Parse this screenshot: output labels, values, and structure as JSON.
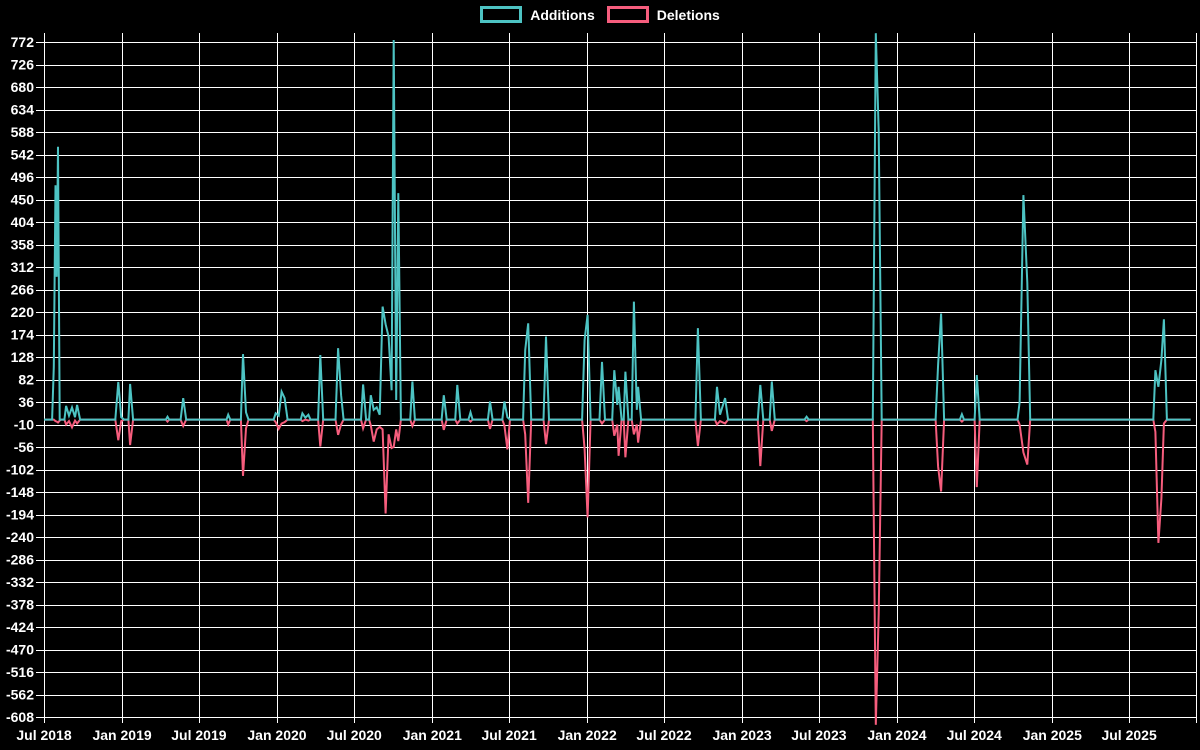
{
  "chart_data": {
    "type": "line",
    "title": "",
    "xlabel": "",
    "ylabel": "",
    "grid": true,
    "legend_position": "top",
    "background_color": "#000000",
    "grid_color": "#ffffff",
    "text_color": "#ffffff",
    "ylim": [
      -624,
      790
    ],
    "x_range": [
      "2018-07-01",
      "2025-12-08"
    ],
    "y_ticks": [
      772,
      726,
      680,
      634,
      588,
      542,
      496,
      450,
      404,
      358,
      312,
      266,
      220,
      174,
      128,
      82,
      36,
      -10,
      -56,
      -102,
      -148,
      -194,
      -240,
      -286,
      -332,
      -378,
      -424,
      -470,
      -516,
      -562,
      -608
    ],
    "x_ticks": [
      {
        "label": "Jul 2018",
        "date": "2018-07-01"
      },
      {
        "label": "Jan 2019",
        "date": "2019-01-01"
      },
      {
        "label": "Jul 2019",
        "date": "2019-07-01"
      },
      {
        "label": "Jan 2020",
        "date": "2020-01-01"
      },
      {
        "label": "Jul 2020",
        "date": "2020-07-01"
      },
      {
        "label": "Jan 2021",
        "date": "2021-01-01"
      },
      {
        "label": "Jul 2021",
        "date": "2021-07-01"
      },
      {
        "label": "Jan 2022",
        "date": "2022-01-01"
      },
      {
        "label": "Jul 2022",
        "date": "2022-07-01"
      },
      {
        "label": "Jan 2023",
        "date": "2023-01-01"
      },
      {
        "label": "Jul 2023",
        "date": "2023-07-01"
      },
      {
        "label": "Jan 2024",
        "date": "2024-01-01"
      },
      {
        "label": "Jul 2024",
        "date": "2024-07-01"
      },
      {
        "label": "Jan 2025",
        "date": "2025-01-01"
      },
      {
        "label": "Jul 2025",
        "date": "2025-07-01"
      }
    ],
    "series": [
      {
        "name": "Additions",
        "color": "#4DC3C3",
        "value_index": 1
      },
      {
        "name": "Deletions",
        "color": "#F65D7D",
        "value_index": 2
      }
    ],
    "points": [
      [
        "2018-07-01",
        0,
        0
      ],
      [
        "2018-07-20",
        0,
        0
      ],
      [
        "2018-07-24",
        108,
        0
      ],
      [
        "2018-07-28",
        479,
        -3
      ],
      [
        "2018-07-31",
        292,
        -4
      ],
      [
        "2018-08-03",
        558,
        -6
      ],
      [
        "2018-08-07",
        0,
        -2
      ],
      [
        "2018-08-10",
        0,
        0
      ],
      [
        "2018-08-18",
        0,
        0
      ],
      [
        "2018-08-22",
        28,
        -10
      ],
      [
        "2018-08-29",
        8,
        -3
      ],
      [
        "2018-09-05",
        25,
        -16
      ],
      [
        "2018-09-12",
        5,
        -2
      ],
      [
        "2018-09-17",
        30,
        -8
      ],
      [
        "2018-09-24",
        0,
        0
      ],
      [
        "2018-12-16",
        0,
        0
      ],
      [
        "2018-12-23",
        77,
        -42
      ],
      [
        "2018-12-30",
        5,
        -3
      ],
      [
        "2019-01-06",
        0,
        0
      ],
      [
        "2019-01-16",
        0,
        0
      ],
      [
        "2019-01-20",
        73,
        -52
      ],
      [
        "2019-01-27",
        0,
        0
      ],
      [
        "2019-04-14",
        0,
        0
      ],
      [
        "2019-04-18",
        6,
        -4
      ],
      [
        "2019-04-22",
        0,
        0
      ],
      [
        "2019-05-19",
        0,
        0
      ],
      [
        "2019-05-25",
        44,
        -13
      ],
      [
        "2019-06-01",
        0,
        0
      ],
      [
        "2019-09-04",
        0,
        0
      ],
      [
        "2019-09-08",
        10,
        -10
      ],
      [
        "2019-09-13",
        0,
        0
      ],
      [
        "2019-10-08",
        0,
        0
      ],
      [
        "2019-10-13",
        134,
        -115
      ],
      [
        "2019-10-20",
        15,
        -18
      ],
      [
        "2019-10-26",
        0,
        0
      ],
      [
        "2019-12-24",
        0,
        0
      ],
      [
        "2019-12-29",
        13,
        -5
      ],
      [
        "2020-01-05",
        8,
        -19
      ],
      [
        "2020-01-12",
        57,
        -8
      ],
      [
        "2020-01-19",
        44,
        -5
      ],
      [
        "2020-01-26",
        0,
        0
      ],
      [
        "2020-02-26",
        0,
        0
      ],
      [
        "2020-03-01",
        13,
        -3
      ],
      [
        "2020-03-08",
        4,
        0
      ],
      [
        "2020-03-15",
        10,
        -2
      ],
      [
        "2020-03-20",
        0,
        0
      ],
      [
        "2020-04-07",
        0,
        0
      ],
      [
        "2020-04-12",
        132,
        -55
      ],
      [
        "2020-04-19",
        0,
        0
      ],
      [
        "2020-05-18",
        0,
        0
      ],
      [
        "2020-05-24",
        146,
        -31
      ],
      [
        "2020-05-31",
        50,
        -10
      ],
      [
        "2020-06-06",
        0,
        0
      ],
      [
        "2020-07-17",
        0,
        0
      ],
      [
        "2020-07-22",
        72,
        -18
      ],
      [
        "2020-07-29",
        0,
        0
      ],
      [
        "2020-08-05",
        0,
        0
      ],
      [
        "2020-08-09",
        50,
        -12
      ],
      [
        "2020-08-16",
        20,
        -45
      ],
      [
        "2020-08-23",
        25,
        -20
      ],
      [
        "2020-08-30",
        10,
        -15
      ],
      [
        "2020-09-06",
        231,
        -20
      ],
      [
        "2020-09-13",
        195,
        -192
      ],
      [
        "2020-09-20",
        170,
        -30
      ],
      [
        "2020-09-27",
        60,
        -58
      ],
      [
        "2020-10-02",
        776,
        -56
      ],
      [
        "2020-10-08",
        40,
        -20
      ],
      [
        "2020-10-13",
        463,
        -44
      ],
      [
        "2020-10-19",
        0,
        0
      ],
      [
        "2020-11-10",
        0,
        0
      ],
      [
        "2020-11-15",
        78,
        -13
      ],
      [
        "2020-11-21",
        0,
        0
      ],
      [
        "2021-01-23",
        0,
        0
      ],
      [
        "2021-01-28",
        50,
        -21
      ],
      [
        "2021-02-04",
        0,
        0
      ],
      [
        "2021-02-24",
        0,
        0
      ],
      [
        "2021-03-01",
        71,
        -8
      ],
      [
        "2021-03-08",
        0,
        0
      ],
      [
        "2021-03-27",
        0,
        0
      ],
      [
        "2021-04-01",
        15,
        -4
      ],
      [
        "2021-04-06",
        0,
        0
      ],
      [
        "2021-05-12",
        0,
        0
      ],
      [
        "2021-05-17",
        37,
        -19
      ],
      [
        "2021-05-23",
        0,
        0
      ],
      [
        "2021-06-15",
        0,
        0
      ],
      [
        "2021-06-20",
        37,
        -12
      ],
      [
        "2021-06-27",
        5,
        -61
      ],
      [
        "2021-07-03",
        0,
        0
      ],
      [
        "2021-08-03",
        0,
        0
      ],
      [
        "2021-08-08",
        142,
        -30
      ],
      [
        "2021-08-15",
        197,
        -170
      ],
      [
        "2021-08-22",
        0,
        0
      ],
      [
        "2021-09-20",
        0,
        0
      ],
      [
        "2021-09-26",
        170,
        -50
      ],
      [
        "2021-10-03",
        0,
        0
      ],
      [
        "2021-12-20",
        0,
        0
      ],
      [
        "2021-12-26",
        163,
        -60
      ],
      [
        "2022-01-02",
        214,
        -200
      ],
      [
        "2022-01-09",
        0,
        0
      ],
      [
        "2022-01-30",
        0,
        0
      ],
      [
        "2022-02-05",
        118,
        -8
      ],
      [
        "2022-02-12",
        0,
        0
      ],
      [
        "2022-03-01",
        0,
        0
      ],
      [
        "2022-03-06",
        101,
        -33
      ],
      [
        "2022-03-13",
        30,
        -10
      ],
      [
        "2022-03-16",
        67,
        -74
      ],
      [
        "2022-03-23",
        0,
        0
      ],
      [
        "2022-03-28",
        0,
        0
      ],
      [
        "2022-04-01",
        98,
        -77
      ],
      [
        "2022-04-08",
        0,
        0
      ],
      [
        "2022-04-16",
        0,
        0
      ],
      [
        "2022-04-21",
        241,
        -30
      ],
      [
        "2022-04-28",
        20,
        -10
      ],
      [
        "2022-05-01",
        67,
        -47
      ],
      [
        "2022-05-08",
        0,
        0
      ],
      [
        "2022-09-13",
        0,
        0
      ],
      [
        "2022-09-19",
        187,
        -54
      ],
      [
        "2022-09-26",
        0,
        0
      ],
      [
        "2022-10-29",
        0,
        0
      ],
      [
        "2022-11-03",
        67,
        -10
      ],
      [
        "2022-11-10",
        10,
        -3
      ],
      [
        "2022-11-22",
        44,
        -8
      ],
      [
        "2022-11-29",
        0,
        0
      ],
      [
        "2023-02-07",
        0,
        0
      ],
      [
        "2023-02-13",
        71,
        -95
      ],
      [
        "2023-02-20",
        0,
        0
      ],
      [
        "2023-03-07",
        0,
        0
      ],
      [
        "2023-03-12",
        78,
        -23
      ],
      [
        "2023-03-19",
        0,
        0
      ],
      [
        "2023-05-28",
        0,
        0
      ],
      [
        "2023-06-02",
        6,
        -3
      ],
      [
        "2023-06-07",
        0,
        0
      ],
      [
        "2023-11-05",
        0,
        0
      ],
      [
        "2023-11-12",
        790,
        -624
      ],
      [
        "2023-11-19",
        590,
        -397
      ],
      [
        "2023-11-26",
        0,
        0
      ],
      [
        "2024-04-01",
        0,
        0
      ],
      [
        "2024-04-07",
        112,
        -96
      ],
      [
        "2024-04-14",
        217,
        -147
      ],
      [
        "2024-04-21",
        0,
        0
      ],
      [
        "2024-05-28",
        0,
        0
      ],
      [
        "2024-06-02",
        11,
        -4
      ],
      [
        "2024-06-07",
        0,
        0
      ],
      [
        "2024-07-02",
        0,
        0
      ],
      [
        "2024-07-07",
        91,
        -138
      ],
      [
        "2024-07-14",
        0,
        0
      ],
      [
        "2024-10-11",
        0,
        0
      ],
      [
        "2024-10-16",
        35,
        -10
      ],
      [
        "2024-10-25",
        459,
        -67
      ],
      [
        "2024-11-03",
        280,
        -92
      ],
      [
        "2024-11-10",
        0,
        0
      ],
      [
        "2025-08-27",
        0,
        0
      ],
      [
        "2025-09-01",
        101,
        -25
      ],
      [
        "2025-09-08",
        67,
        -252
      ],
      [
        "2025-09-15",
        122,
        -161
      ],
      [
        "2025-09-21",
        205,
        -8
      ],
      [
        "2025-09-28",
        0,
        0
      ],
      [
        "2025-11-23",
        0,
        0
      ]
    ]
  }
}
